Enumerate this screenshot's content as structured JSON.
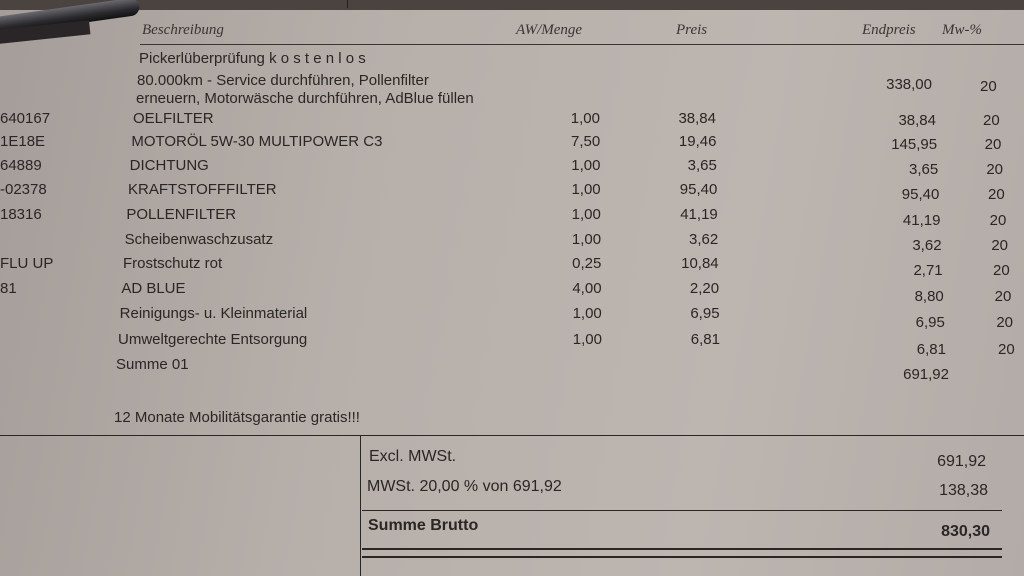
{
  "header": {
    "description": "Beschreibung",
    "quantity": "AW/Menge",
    "price": "Preis",
    "total": "Endpreis",
    "vat": "Mw-%"
  },
  "intro": {
    "line1": "Pickerlüberprüfung  k o s t e n l o s",
    "service_line1": "80.000km - Service durchführen, Pollenfilter",
    "service_line2": "erneuern, Motorwäsche durchführen, AdBlue füllen",
    "service_total": "338,00",
    "service_vat": "20"
  },
  "items": [
    {
      "code": "640167",
      "description": "OELFILTER",
      "quantity": "1,00",
      "price": "38,84",
      "total": "38,84",
      "vat": "20"
    },
    {
      "code": "1E18E",
      "description": "MOTORÖL 5W-30 MULTIPOWER C3",
      "quantity": "7,50",
      "price": "19,46",
      "total": "145,95",
      "vat": "20"
    },
    {
      "code": "64889",
      "description": "DICHTUNG",
      "quantity": "1,00",
      "price": "3,65",
      "total": "3,65",
      "vat": "20"
    },
    {
      "code": "-02378",
      "description": "KRAFTSTOFFFILTER",
      "quantity": "1,00",
      "price": "95,40",
      "total": "95,40",
      "vat": "20"
    },
    {
      "code": "18316",
      "description": "POLLENFILTER",
      "quantity": "1,00",
      "price": "41,19",
      "total": "41,19",
      "vat": "20"
    },
    {
      "code": "",
      "description": "Scheibenwaschzusatz",
      "quantity": "1,00",
      "price": "3,62",
      "total": "3,62",
      "vat": "20"
    },
    {
      "code": "FLU UP",
      "description": "Frostschutz rot",
      "quantity": "0,25",
      "price": "10,84",
      "total": "2,71",
      "vat": "20"
    },
    {
      "code": "81",
      "description": "AD BLUE",
      "quantity": "4,00",
      "price": "2,20",
      "total": "8,80",
      "vat": "20"
    },
    {
      "code": "",
      "description": "Reinigungs- u. Kleinmaterial",
      "quantity": "1,00",
      "price": "6,95",
      "total": "6,95",
      "vat": "20"
    },
    {
      "code": "",
      "description": "Umweltgerechte Entsorgung",
      "quantity": "1,00",
      "price": "6,81",
      "total": "6,81",
      "vat": "20"
    }
  ],
  "subtotal": {
    "label": "Summe 01",
    "value": "691,92"
  },
  "note": "12 Monate Mobilitätsgarantie gratis!!!",
  "totals": {
    "net_label": "Excl. MWSt.",
    "net_value": "691,92",
    "vat_label": "MWSt. 20,00 % von 691,92",
    "vat_value": "138,38",
    "gross_label": "Summe Brutto",
    "gross_value": "830,30"
  }
}
